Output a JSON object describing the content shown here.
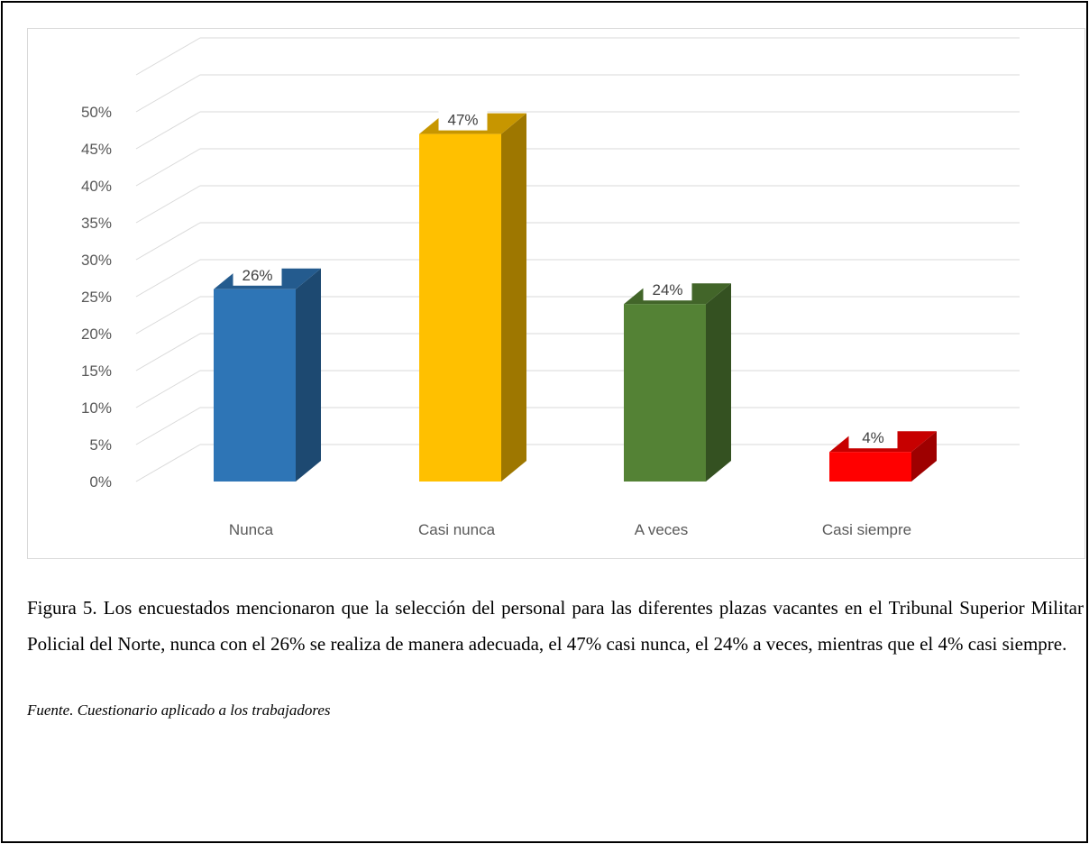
{
  "chart_data": {
    "type": "bar",
    "categories": [
      "Nunca",
      "Casi nunca",
      "A veces",
      "Casi siempre"
    ],
    "values": [
      26,
      47,
      24,
      4
    ],
    "value_labels": [
      "26%",
      "47%",
      "24%",
      "4%"
    ],
    "colors": [
      "#2E75B6",
      "#FFC000",
      "#548235",
      "#FF0000"
    ],
    "yticks": [
      "0%",
      "5%",
      "10%",
      "15%",
      "20%",
      "25%",
      "30%",
      "35%",
      "40%",
      "45%",
      "50%"
    ],
    "ylim": [
      0,
      50
    ],
    "grid": true,
    "legend": "none",
    "style": "3d-column"
  },
  "caption": "Figura 5. Los encuestados mencionaron que la selección del personal para las diferentes plazas vacantes en el Tribunal Superior Militar Policial del Norte, nunca con el 26% se realiza de manera adecuada, el 47% casi nunca, el 24% a veces, mientras que el 4% casi siempre.",
  "source": "Fuente. Cuestionario aplicado a los trabajadores"
}
